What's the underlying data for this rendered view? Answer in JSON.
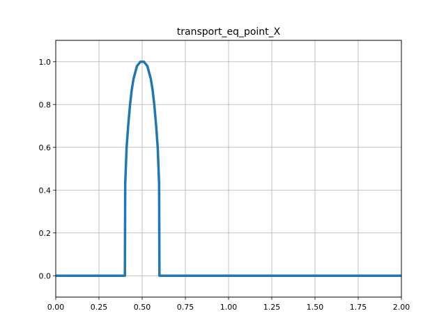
{
  "chart_data": {
    "type": "line",
    "title": "transport_eq_point_X",
    "xlabel": "",
    "ylabel": "",
    "xlim": [
      0.0,
      2.0
    ],
    "ylim": [
      -0.1,
      1.1
    ],
    "grid": true,
    "xticks": [
      0.0,
      0.25,
      0.5,
      0.75,
      1.0,
      1.25,
      1.5,
      1.75,
      2.0
    ],
    "xtick_labels": [
      "0.00",
      "0.25",
      "0.50",
      "0.75",
      "1.00",
      "1.25",
      "1.50",
      "1.75",
      "2.00"
    ],
    "yticks": [
      0.0,
      0.2,
      0.4,
      0.6,
      0.8,
      1.0
    ],
    "ytick_labels": [
      "0.0",
      "0.2",
      "0.4",
      "0.6",
      "0.8",
      "1.0"
    ],
    "line_color": "#1f77b4",
    "series": [
      {
        "x": [
          0.0,
          0.2,
          0.4,
          0.402,
          0.41,
          0.42,
          0.43,
          0.44,
          0.45,
          0.46,
          0.47,
          0.48,
          0.49,
          0.5,
          0.51,
          0.52,
          0.53,
          0.54,
          0.55,
          0.56,
          0.57,
          0.58,
          0.59,
          0.598,
          0.6,
          0.8,
          1.0,
          1.25,
          1.5,
          1.75,
          2.0
        ],
        "y": [
          0.0,
          0.0,
          0.0,
          0.43,
          0.6,
          0.71,
          0.8,
          0.87,
          0.92,
          0.95,
          0.98,
          0.99,
          1.0,
          1.0,
          1.0,
          0.99,
          0.98,
          0.95,
          0.92,
          0.87,
          0.8,
          0.71,
          0.6,
          0.43,
          0.0,
          0.0,
          0.0,
          0.0,
          0.0,
          0.0,
          0.0
        ]
      }
    ]
  }
}
